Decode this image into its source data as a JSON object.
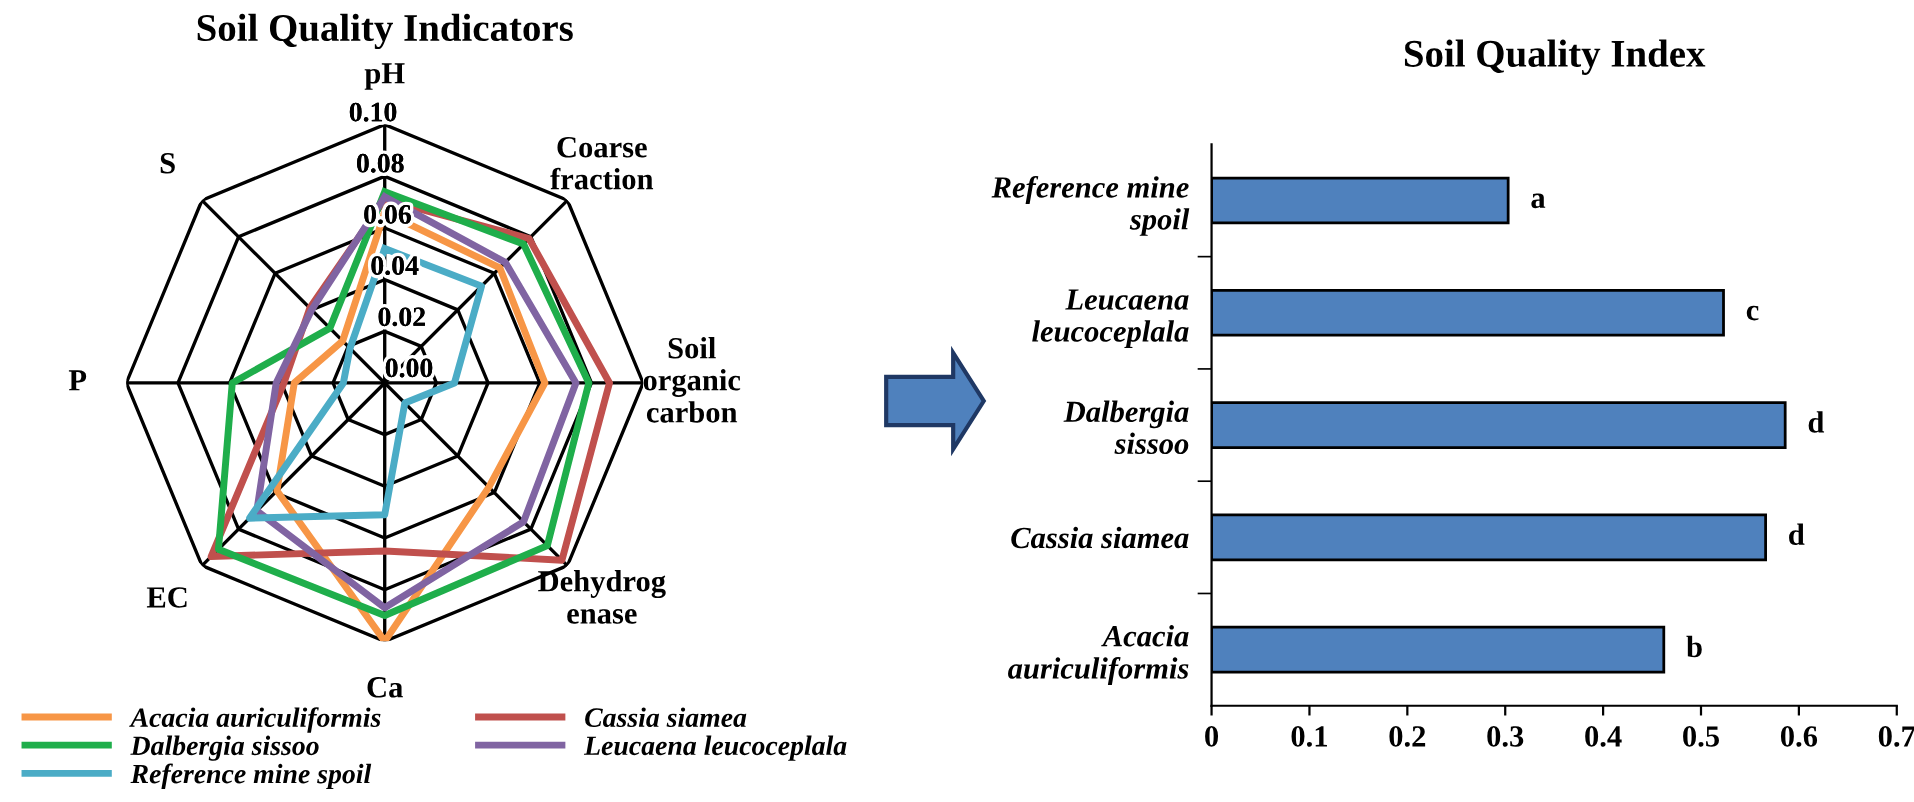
{
  "chart_data": [
    {
      "type": "radar",
      "title": "Soil Quality Indicators",
      "categories": [
        "pH",
        "Coarse\nfraction",
        "Soil\norganic\ncarbon",
        "Dehydrog\nenase",
        "Ca",
        "EC",
        "P",
        "S"
      ],
      "ylim": [
        0,
        0.1
      ],
      "yticks": [
        {
          "value": 0,
          "label": "0.00"
        },
        0.02,
        0.04,
        0.06,
        0.08,
        {
          "value": 0.1,
          "label": "0.10"
        }
      ],
      "grid": true,
      "legend": "bottom",
      "series": [
        {
          "name": "Acacia auriculiformis",
          "color": "#f79646",
          "values": [
            0.066,
            0.063,
            0.062,
            0.057,
            0.1,
            0.059,
            0.035,
            0.023
          ]
        },
        {
          "name": "Cassia siamea",
          "color": "#c0504d",
          "values": [
            0.071,
            0.079,
            0.087,
            0.097,
            0.065,
            0.095,
            0.039,
            0.041
          ]
        },
        {
          "name": "Dalbergia sissoo",
          "color": "#1fae4b",
          "values": [
            0.074,
            0.076,
            0.079,
            0.089,
            0.09,
            0.091,
            0.059,
            0.03
          ]
        },
        {
          "name": "Leucaena leucoceplala",
          "color": "#8064a2",
          "values": [
            0.072,
            0.066,
            0.074,
            0.076,
            0.087,
            0.07,
            0.042,
            0.04
          ]
        },
        {
          "name": "Reference mine spoil",
          "color": "#4bacc6",
          "values": [
            0.052,
            0.053,
            0.027,
            0.011,
            0.051,
            0.074,
            0.016,
            0.019
          ]
        }
      ]
    },
    {
      "type": "bar",
      "orientation": "horizontal",
      "title": "Soil Quality Index",
      "categories": [
        "Reference mine\nspoil",
        "Leucaena\nleucoceplala",
        "Dalbergia\nsissoo",
        "Cassia siamea",
        "Acacia\nauriculiformis"
      ],
      "values": [
        0.303,
        0.523,
        0.586,
        0.566,
        0.462
      ],
      "value_labels": [
        "a",
        "c",
        "d",
        "d",
        "b"
      ],
      "color": "#4f81bd",
      "xlim": [
        0,
        0.7
      ],
      "xticks": [
        0,
        0.1,
        0.2,
        0.3,
        0.4,
        0.5,
        0.6,
        0.7
      ],
      "grid": false
    }
  ]
}
